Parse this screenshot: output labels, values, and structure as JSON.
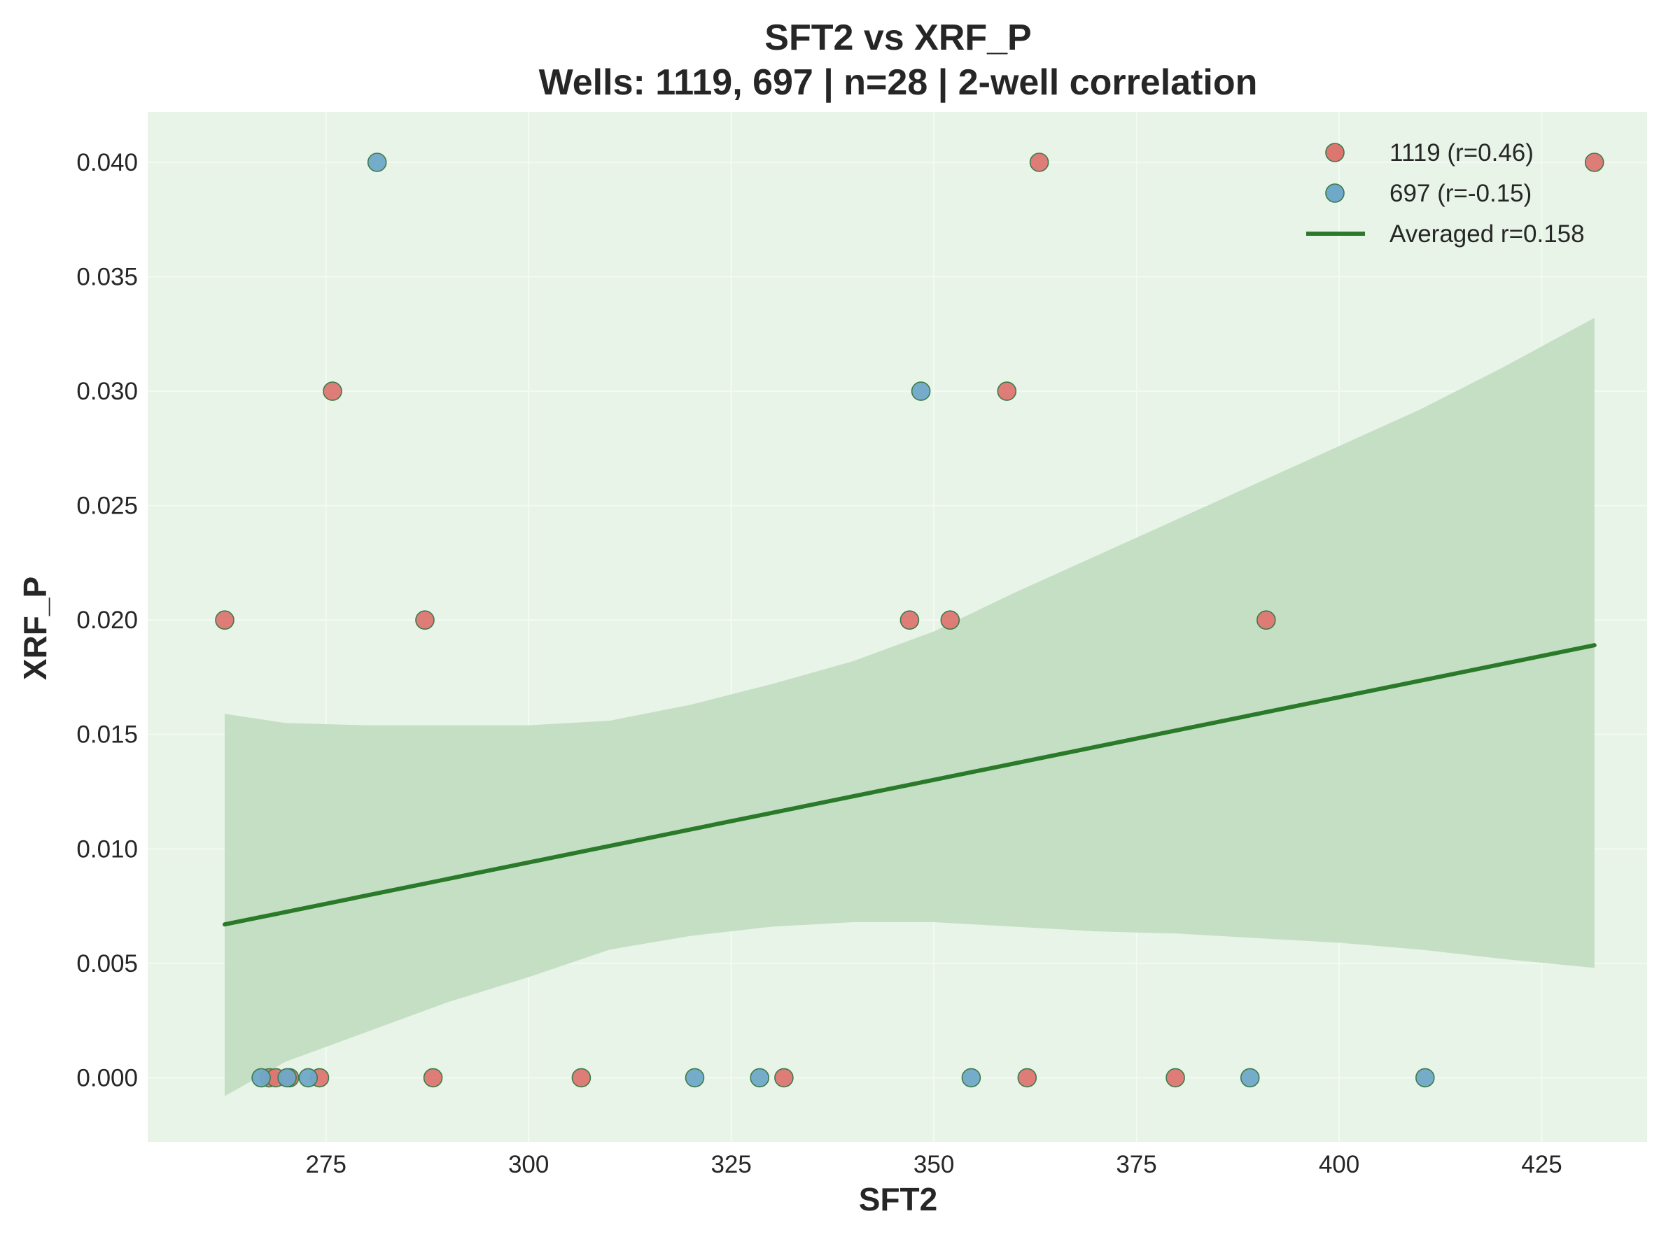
{
  "chart_data": {
    "type": "scatter",
    "title": "SFT2 vs XRF_P",
    "subtitle": "Wells: 1119, 697 | n=28 | 2-well correlation",
    "xlabel": "SFT2",
    "ylabel": "XRF_P",
    "xlim": [
      253,
      438
    ],
    "ylim": [
      -0.0028,
      0.0422
    ],
    "xticks": [
      275,
      300,
      325,
      350,
      375,
      400,
      425
    ],
    "yticks": [
      0.0,
      0.005,
      0.01,
      0.015,
      0.02,
      0.025,
      0.03,
      0.035,
      0.04
    ],
    "ytick_labels": [
      "0.000",
      "0.005",
      "0.010",
      "0.015",
      "0.020",
      "0.025",
      "0.030",
      "0.035",
      "0.040"
    ],
    "grid": true,
    "legend_position": "top-right",
    "colors": {
      "background": "#e7f4e7",
      "grid": "#f3faf3",
      "band": "#c4dfc4",
      "line": "#2a7a2a",
      "well_1119": "#dd7671",
      "well_697": "#6fa8c8",
      "marker_edge": "#3d7a4a"
    },
    "series": [
      {
        "name": "1119 (r=0.46)",
        "color": "#dd7671",
        "points": [
          {
            "x": 262.5,
            "y": 0.02
          },
          {
            "x": 275.8,
            "y": 0.03
          },
          {
            "x": 287.2,
            "y": 0.02
          },
          {
            "x": 347.0,
            "y": 0.02
          },
          {
            "x": 352.0,
            "y": 0.02
          },
          {
            "x": 359.0,
            "y": 0.03
          },
          {
            "x": 363.0,
            "y": 0.04
          },
          {
            "x": 391.0,
            "y": 0.02
          },
          {
            "x": 431.5,
            "y": 0.04
          },
          {
            "x": 268.0,
            "y": 0.0
          },
          {
            "x": 268.8,
            "y": 0.0
          },
          {
            "x": 270.5,
            "y": 0.0
          },
          {
            "x": 274.2,
            "y": 0.0
          },
          {
            "x": 288.2,
            "y": 0.0
          },
          {
            "x": 306.5,
            "y": 0.0
          },
          {
            "x": 331.5,
            "y": 0.0
          },
          {
            "x": 361.5,
            "y": 0.0
          },
          {
            "x": 379.8,
            "y": 0.0
          }
        ]
      },
      {
        "name": "697 (r=-0.15)",
        "color": "#6fa8c8",
        "points": [
          {
            "x": 281.3,
            "y": 0.04
          },
          {
            "x": 348.4,
            "y": 0.03
          },
          {
            "x": 267.0,
            "y": 0.0
          },
          {
            "x": 270.2,
            "y": 0.0
          },
          {
            "x": 272.8,
            "y": 0.0
          },
          {
            "x": 320.5,
            "y": 0.0
          },
          {
            "x": 328.5,
            "y": 0.0
          },
          {
            "x": 354.6,
            "y": 0.0
          },
          {
            "x": 389.0,
            "y": 0.0
          },
          {
            "x": 410.6,
            "y": 0.0
          }
        ]
      }
    ],
    "fit": {
      "name": "Averaged r=0.158",
      "x": [
        262.5,
        431.5
      ],
      "y": [
        0.0067,
        0.0189
      ]
    },
    "confidence_band": {
      "x": [
        262.5,
        270,
        280,
        290,
        300,
        310,
        320,
        330,
        340,
        350,
        360,
        370,
        380,
        390,
        400,
        410,
        420,
        431.5
      ],
      "upper": [
        0.0159,
        0.0155,
        0.0154,
        0.0154,
        0.0154,
        0.0156,
        0.0163,
        0.0172,
        0.0182,
        0.0195,
        0.0212,
        0.0228,
        0.0244,
        0.026,
        0.0276,
        0.0292,
        0.031,
        0.0332
      ],
      "lower": [
        -0.0008,
        0.0007,
        0.002,
        0.0033,
        0.0044,
        0.0056,
        0.0062,
        0.0066,
        0.0068,
        0.0068,
        0.0066,
        0.0064,
        0.0063,
        0.0061,
        0.0059,
        0.0056,
        0.0052,
        0.0048
      ]
    }
  }
}
